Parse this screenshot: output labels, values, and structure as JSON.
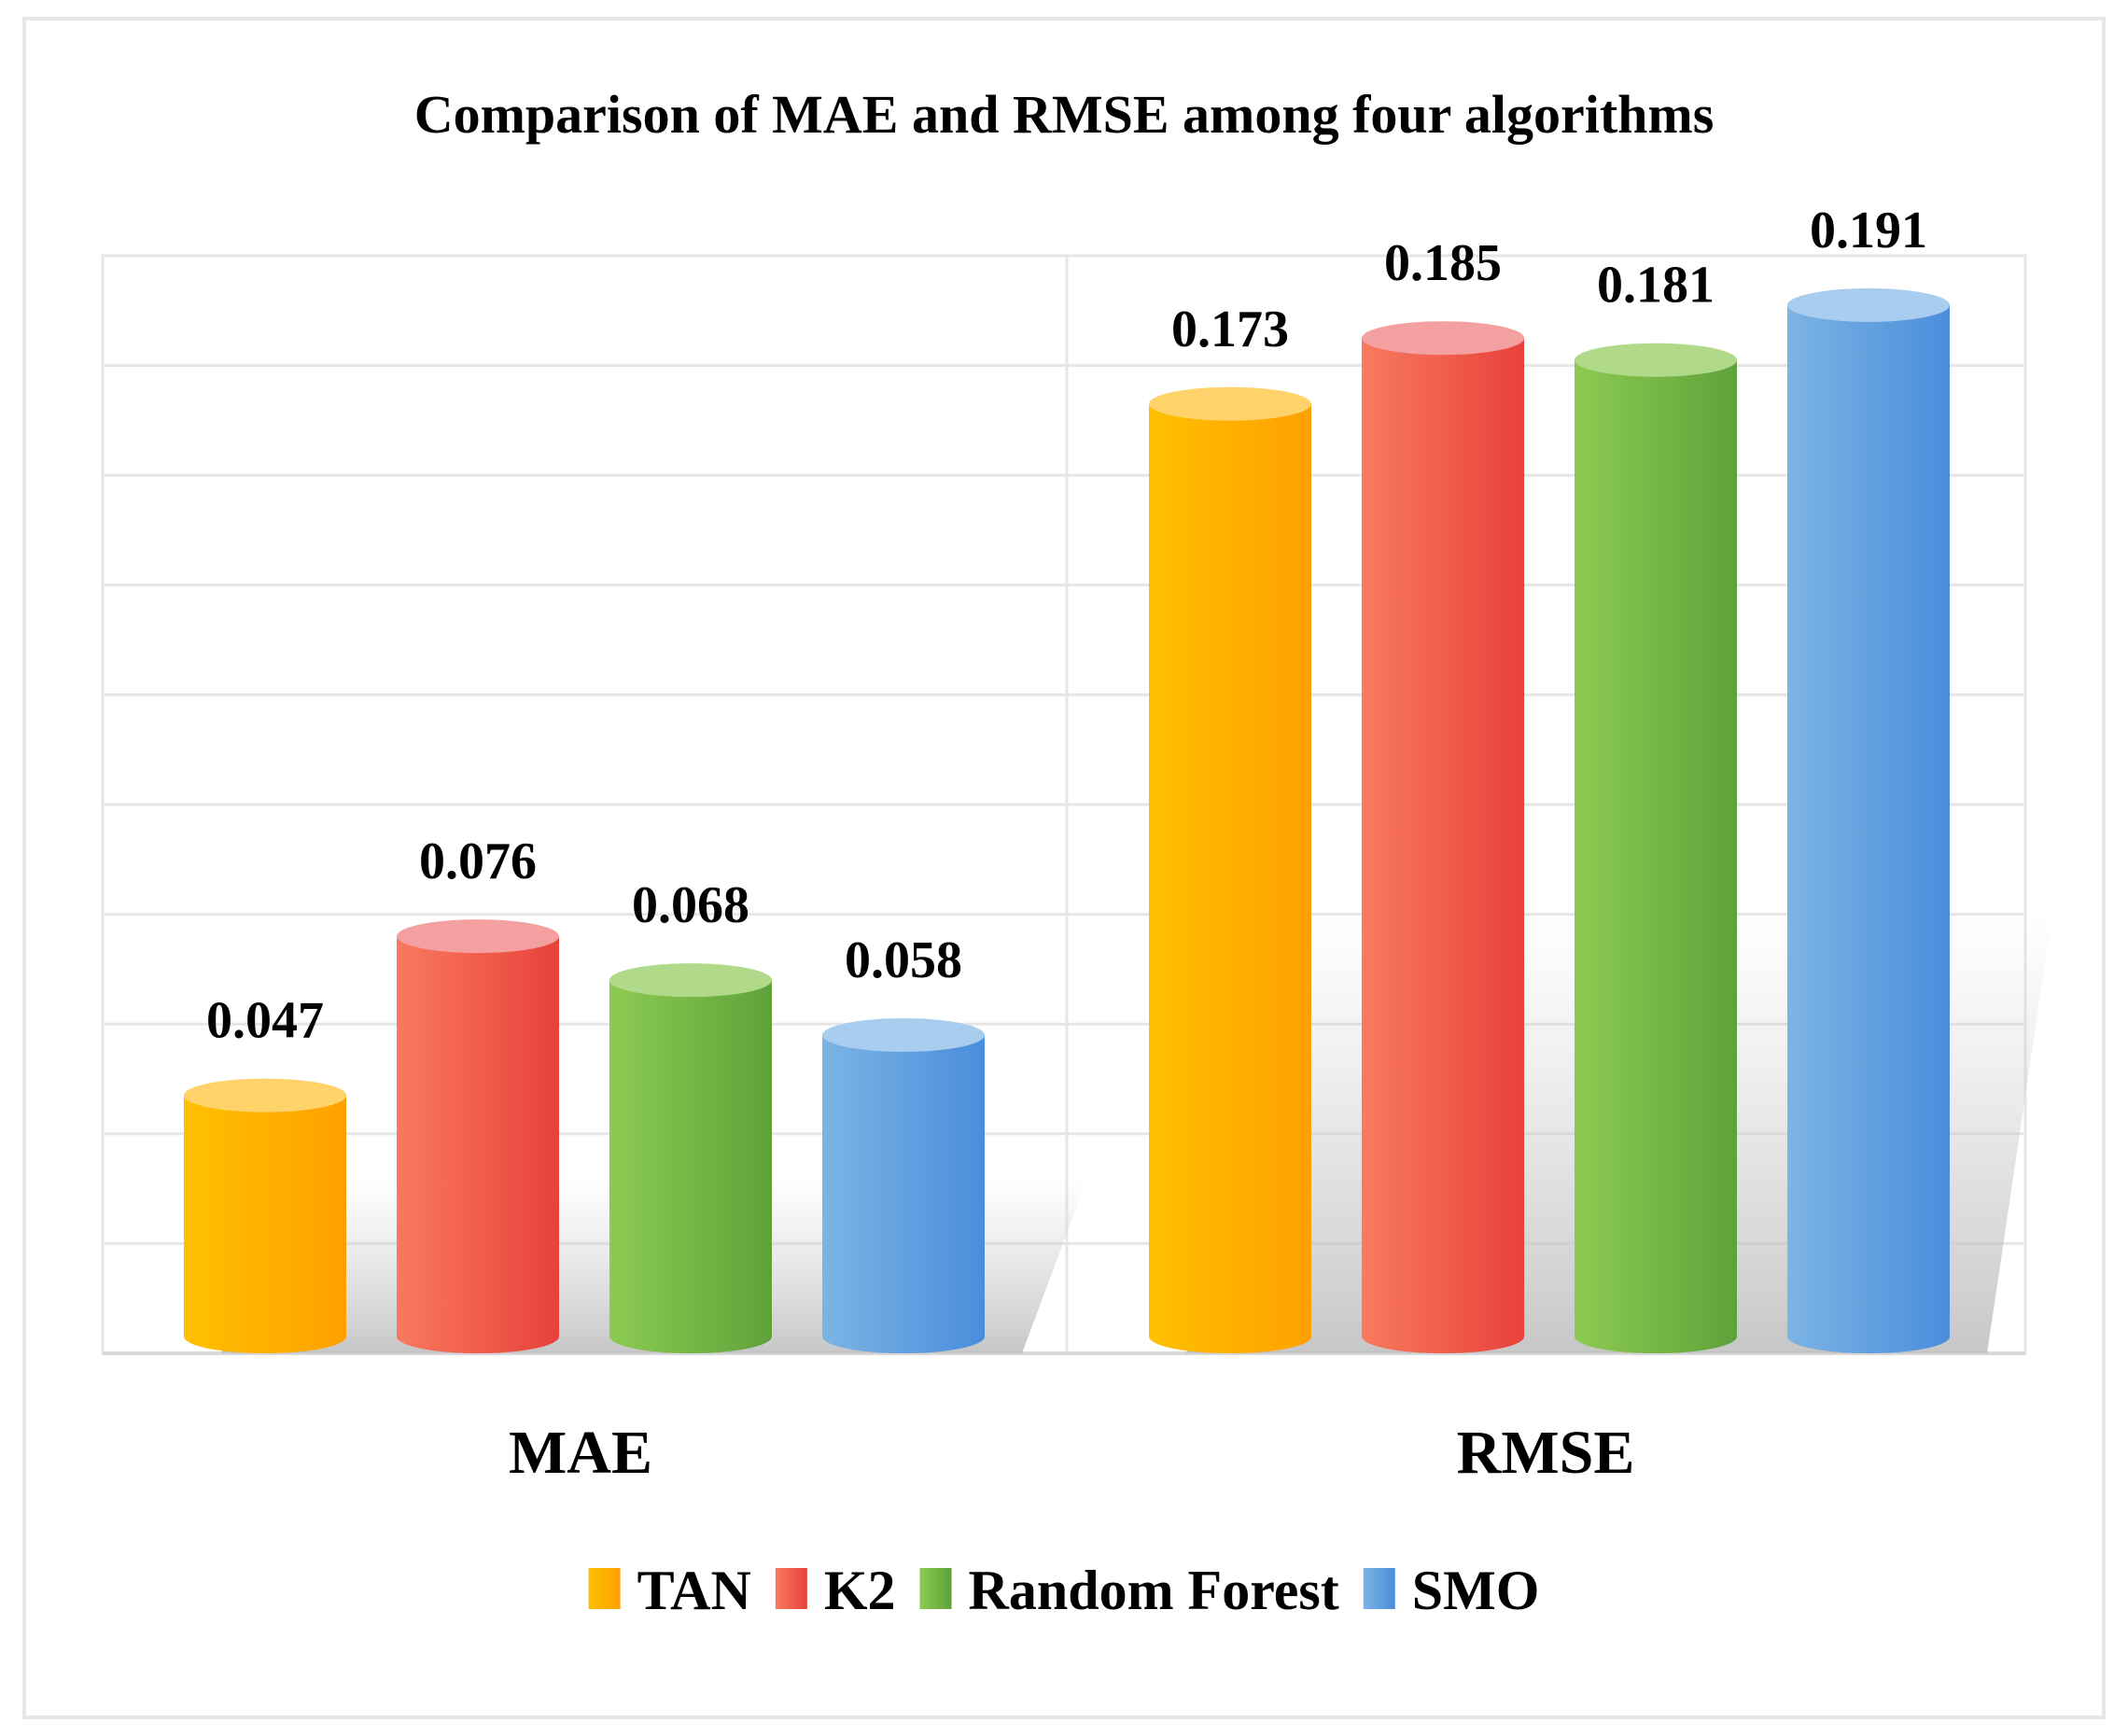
{
  "chart_data": {
    "type": "bar",
    "style": "3d-cylinder",
    "title": "Comparison of MAE and RMSE among four algorithms",
    "categories": [
      "MAE",
      "RMSE"
    ],
    "series": [
      {
        "name": "TAN",
        "values": [
          0.047,
          0.173
        ],
        "color": "#ffa000",
        "color_light": "#ffc000",
        "color_top": "#ffd36a"
      },
      {
        "name": "K2",
        "values": [
          0.076,
          0.185
        ],
        "color": "#e8413a",
        "color_light": "#f97a5e",
        "color_top": "#f5a0a0"
      },
      {
        "name": "Random Forest",
        "values": [
          0.068,
          0.181
        ],
        "color": "#5fa23a",
        "color_light": "#8ccb52",
        "color_top": "#b0d98a"
      },
      {
        "name": "SMO",
        "values": [
          0.058,
          0.191
        ],
        "color": "#4a8ddb",
        "color_light": "#7cb4e4",
        "color_top": "#a9cdee"
      }
    ],
    "data_labels": [
      [
        "0.047",
        "0.076",
        "0.068",
        "0.058"
      ],
      [
        "0.173",
        "0.185",
        "0.181",
        "0.191"
      ]
    ],
    "xlabel": "",
    "ylabel": "",
    "ylim": [
      0,
      0.2
    ],
    "y_step": 0.02,
    "grid": true,
    "legend": "bottom-center",
    "axis_color": "#d9d9d9",
    "grid_color": "#e6e6e6"
  }
}
